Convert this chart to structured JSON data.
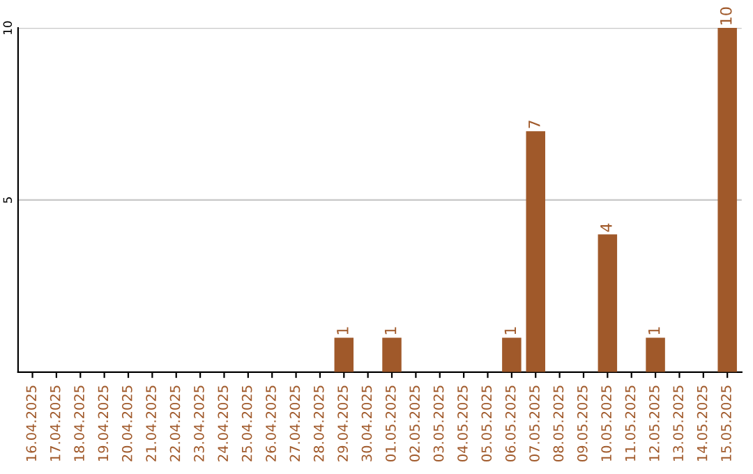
{
  "chart_data": {
    "type": "bar",
    "categories": [
      "16.04.2025",
      "17.04.2025",
      "18.04.2025",
      "19.04.2025",
      "20.04.2025",
      "21.04.2025",
      "22.04.2025",
      "23.04.2025",
      "24.04.2025",
      "25.04.2025",
      "26.04.2025",
      "27.04.2025",
      "28.04.2025",
      "29.04.2025",
      "30.04.2025",
      "01.05.2025",
      "02.05.2025",
      "03.05.2025",
      "04.05.2025",
      "05.05.2025",
      "06.05.2025",
      "07.05.2025",
      "08.05.2025",
      "09.05.2025",
      "10.05.2025",
      "11.05.2025",
      "12.05.2025",
      "13.05.2025",
      "14.05.2025",
      "15.05.2025"
    ],
    "values": [
      0,
      0,
      0,
      0,
      0,
      0,
      0,
      0,
      0,
      0,
      0,
      0,
      0,
      1,
      0,
      1,
      0,
      0,
      0,
      0,
      1,
      7,
      0,
      0,
      4,
      0,
      1,
      0,
      0,
      10
    ],
    "value_labels": [
      null,
      null,
      null,
      null,
      null,
      null,
      null,
      null,
      null,
      null,
      null,
      null,
      null,
      "1",
      null,
      "1",
      null,
      null,
      null,
      null,
      "1",
      "7",
      null,
      null,
      "4",
      null,
      "1",
      null,
      null,
      "10"
    ],
    "color": "#a0592a",
    "ylim": [
      0,
      10
    ],
    "yticks": [
      5,
      10
    ],
    "grid": "y",
    "legend": false
  }
}
